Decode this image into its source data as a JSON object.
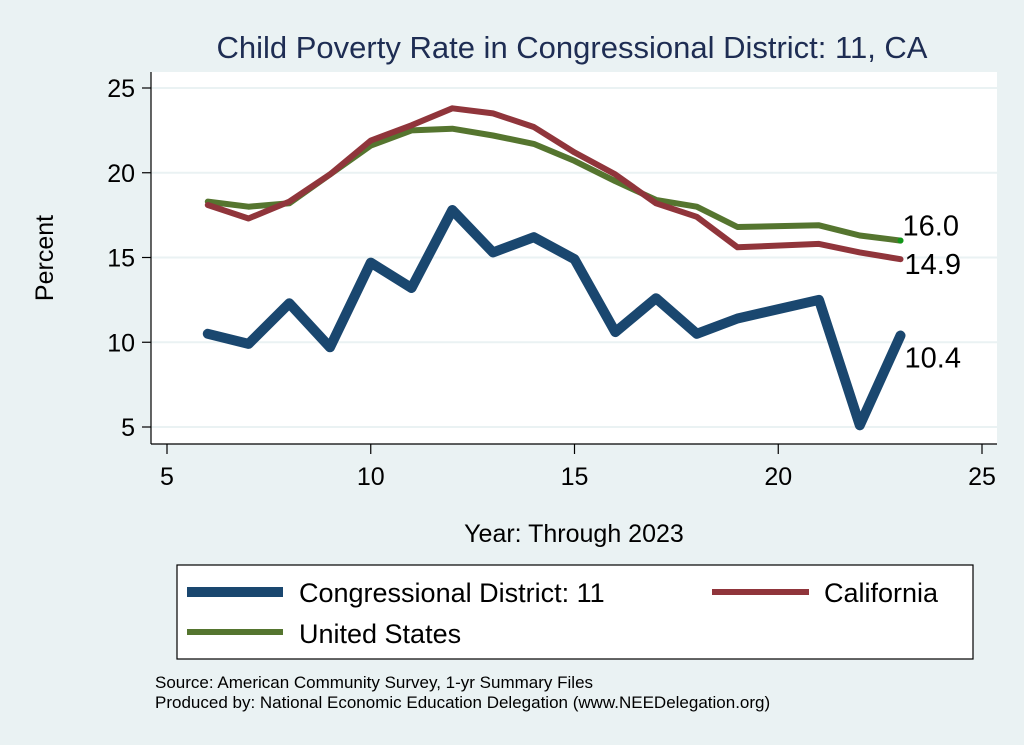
{
  "chart_data": {
    "type": "line",
    "title": "Child Poverty Rate in Congressional District:  11, CA",
    "xlabel": "Year: Through 2023",
    "ylabel": "Percent",
    "xlim": [
      5,
      25
    ],
    "ylim": [
      5,
      25
    ],
    "xticks": [
      5,
      10,
      15,
      20,
      25
    ],
    "yticks": [
      5,
      10,
      15,
      20,
      25
    ],
    "xtick_labels": [
      "5",
      "10",
      "15",
      "20",
      "25"
    ],
    "ytick_labels": [
      "5",
      "10",
      "15",
      "20",
      "25"
    ],
    "grid": true,
    "legend_position": "bottom",
    "series": [
      {
        "name": "Congressional District:  11",
        "color": "#1a476f",
        "x": [
          6,
          7,
          8,
          9,
          10,
          11,
          12,
          13,
          14,
          15,
          16,
          17,
          18,
          19,
          21,
          22,
          23
        ],
        "values": [
          10.5,
          9.9,
          12.3,
          9.7,
          14.7,
          13.2,
          17.8,
          15.3,
          16.2,
          14.9,
          10.6,
          12.6,
          10.5,
          11.4,
          12.5,
          5.1,
          10.4
        ],
        "end_label": "10.4"
      },
      {
        "name": "California",
        "color": "#90353b",
        "x": [
          6,
          7,
          8,
          9,
          10,
          11,
          12,
          13,
          14,
          15,
          16,
          17,
          18,
          19,
          21,
          22,
          23
        ],
        "values": [
          18.1,
          17.3,
          18.3,
          19.9,
          21.9,
          22.8,
          23.8,
          23.5,
          22.7,
          21.2,
          19.9,
          18.2,
          17.4,
          15.6,
          15.8,
          15.3,
          14.9
        ],
        "end_label": "14.9"
      },
      {
        "name": "United States",
        "color": "#55752f",
        "x": [
          6,
          7,
          8,
          9,
          10,
          11,
          12,
          13,
          14,
          15,
          16,
          17,
          18,
          19,
          21,
          22,
          23
        ],
        "values": [
          18.3,
          18.0,
          18.2,
          19.9,
          21.6,
          22.5,
          22.6,
          22.2,
          21.7,
          20.7,
          19.5,
          18.4,
          18.0,
          16.8,
          16.9,
          16.3,
          16.0
        ],
        "end_label": "16.0"
      }
    ],
    "footer": {
      "source": "Source: American Community Survey, 1-yr Summary Files",
      "produced_by": "Produced by: National Economic Education Delegation (www.NEEDelegation.org)"
    }
  }
}
